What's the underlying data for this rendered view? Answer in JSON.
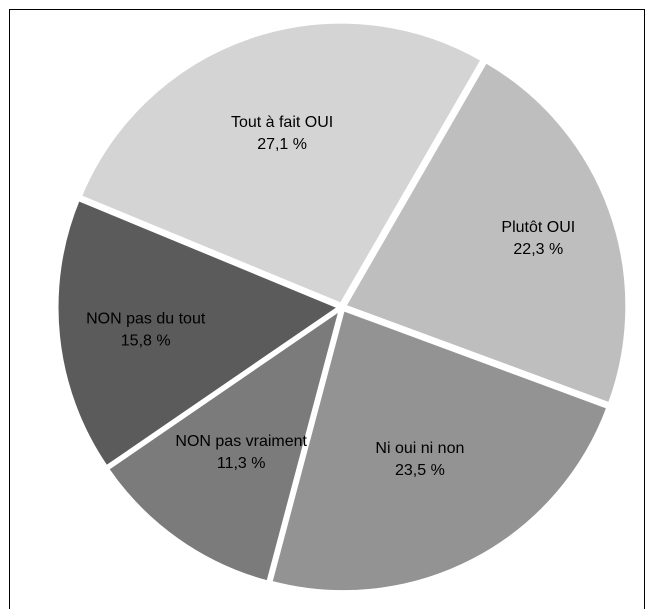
{
  "chart_data": {
    "type": "pie",
    "title": "",
    "start_angle_deg": -60,
    "direction": "clockwise",
    "exploded": true,
    "slices": [
      {
        "label": "Plutôt OUI",
        "value": 22.3,
        "value_label": "22,3 %",
        "color": "#bebebe"
      },
      {
        "label": "Ni oui ni non",
        "value": 23.5,
        "value_label": "23,5 %",
        "color": "#939393"
      },
      {
        "label": "NON pas vraiment",
        "value": 11.3,
        "value_label": "11,3 %",
        "color": "#7b7b7b"
      },
      {
        "label": "NON pas du tout",
        "value": 15.8,
        "value_label": "15,8 %",
        "color": "#5b5b5b"
      },
      {
        "label": "Tout à fait OUI",
        "value": 27.1,
        "value_label": "27,1 %",
        "color": "#d4d4d4"
      }
    ]
  }
}
